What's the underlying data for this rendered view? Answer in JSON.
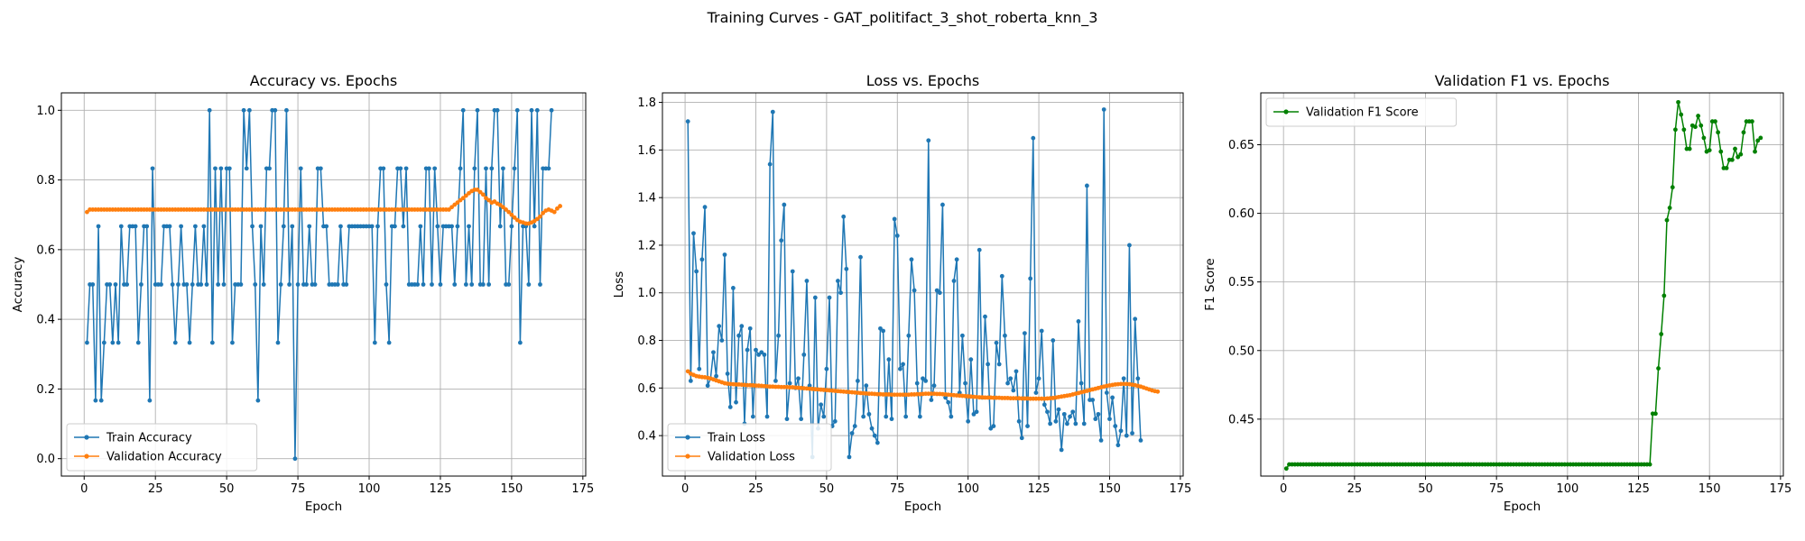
{
  "figure": {
    "suptitle": "Training Curves - GAT_politifact_3_shot_roberta_knn_3",
    "colors": {
      "train": "#1f77b4",
      "validation": "#ff7f0e",
      "f1": "#008000"
    }
  },
  "chart_data": [
    {
      "type": "line",
      "title": "Accuracy vs. Epochs",
      "xlabel": "Epoch",
      "ylabel": "Accuracy",
      "xlim": [
        -8,
        176
      ],
      "ylim": [
        -0.05,
        1.05
      ],
      "xticks": [
        0,
        25,
        50,
        75,
        100,
        125,
        150,
        175
      ],
      "yticks": [
        0.0,
        0.2,
        0.4,
        0.6,
        0.8,
        1.0
      ],
      "ytick_labels": [
        "0.0",
        "0.2",
        "0.4",
        "0.6",
        "0.8",
        "1.0"
      ],
      "grid": true,
      "legend": "lower left",
      "series": [
        {
          "name": "Train Accuracy",
          "color": "#1f77b4",
          "marker": "circle",
          "y": [
            0.333,
            0.5,
            0.5,
            0.167,
            0.667,
            0.167,
            0.333,
            0.5,
            0.5,
            0.333,
            0.5,
            0.333,
            0.667,
            0.5,
            0.5,
            0.667,
            0.667,
            0.667,
            0.333,
            0.5,
            0.667,
            0.667,
            0.167,
            0.833,
            0.5,
            0.5,
            0.5,
            0.667,
            0.667,
            0.667,
            0.5,
            0.333,
            0.5,
            0.667,
            0.5,
            0.5,
            0.333,
            0.5,
            0.667,
            0.5,
            0.5,
            0.667,
            0.5,
            1.0,
            0.333,
            0.833,
            0.5,
            0.833,
            0.5,
            0.833,
            0.833,
            0.333,
            0.5,
            0.5,
            0.5,
            1.0,
            0.833,
            1.0,
            0.667,
            0.5,
            0.167,
            0.667,
            0.5,
            0.833,
            0.833,
            1.0,
            1.0,
            0.333,
            0.5,
            0.667,
            1.0,
            0.5,
            0.667,
            0.0,
            0.5,
            0.833,
            0.5,
            0.5,
            0.667,
            0.5,
            0.5,
            0.833,
            0.833,
            0.667,
            0.667,
            0.5,
            0.5,
            0.5,
            0.5,
            0.667,
            0.5,
            0.5,
            0.667,
            0.667,
            0.667,
            0.667,
            0.667,
            0.667,
            0.667,
            0.667,
            0.667,
            0.333,
            0.667,
            0.833,
            0.833,
            0.5,
            0.333,
            0.667,
            0.667,
            0.833,
            0.833,
            0.667,
            0.833,
            0.5,
            0.5,
            0.5,
            0.5,
            0.667,
            0.5,
            0.833,
            0.833,
            0.5,
            0.833,
            0.667,
            0.5,
            0.667,
            0.667,
            0.667,
            0.667,
            0.5,
            0.667,
            0.833,
            1.0,
            0.5,
            0.667,
            0.5,
            0.833,
            1.0,
            0.5,
            0.5,
            0.833,
            0.5,
            0.833,
            1.0,
            1.0,
            0.667,
            0.833,
            0.5,
            0.5,
            0.667,
            0.833,
            1.0,
            0.333,
            0.667,
            0.667,
            0.5,
            1.0,
            0.667,
            1.0,
            0.5,
            0.833,
            0.833,
            0.833,
            1.0
          ]
        },
        {
          "name": "Validation Accuracy",
          "color": "#ff7f0e",
          "marker": "circle",
          "y": [
            0.708,
            0.715,
            0.715,
            0.715,
            0.715,
            0.715,
            0.715,
            0.715,
            0.715,
            0.715,
            0.715,
            0.715,
            0.715,
            0.715,
            0.715,
            0.715,
            0.715,
            0.715,
            0.715,
            0.715,
            0.715,
            0.715,
            0.715,
            0.715,
            0.715,
            0.715,
            0.715,
            0.715,
            0.715,
            0.715,
            0.715,
            0.715,
            0.715,
            0.715,
            0.715,
            0.715,
            0.715,
            0.715,
            0.715,
            0.715,
            0.715,
            0.715,
            0.715,
            0.715,
            0.715,
            0.715,
            0.715,
            0.715,
            0.715,
            0.715,
            0.715,
            0.715,
            0.715,
            0.715,
            0.715,
            0.715,
            0.715,
            0.715,
            0.715,
            0.715,
            0.715,
            0.715,
            0.715,
            0.715,
            0.715,
            0.715,
            0.715,
            0.715,
            0.715,
            0.715,
            0.715,
            0.715,
            0.715,
            0.715,
            0.715,
            0.715,
            0.715,
            0.715,
            0.715,
            0.715,
            0.715,
            0.715,
            0.715,
            0.715,
            0.715,
            0.715,
            0.715,
            0.715,
            0.715,
            0.715,
            0.715,
            0.715,
            0.715,
            0.715,
            0.715,
            0.715,
            0.715,
            0.715,
            0.715,
            0.715,
            0.715,
            0.715,
            0.715,
            0.715,
            0.715,
            0.715,
            0.715,
            0.715,
            0.715,
            0.715,
            0.715,
            0.715,
            0.715,
            0.715,
            0.715,
            0.715,
            0.715,
            0.715,
            0.715,
            0.715,
            0.715,
            0.715,
            0.715,
            0.715,
            0.715,
            0.715,
            0.715,
            0.715,
            0.722,
            0.729,
            0.735,
            0.742,
            0.748,
            0.755,
            0.762,
            0.768,
            0.772,
            0.772,
            0.765,
            0.758,
            0.748,
            0.742,
            0.735,
            0.738,
            0.732,
            0.728,
            0.722,
            0.715,
            0.708,
            0.7,
            0.692,
            0.685,
            0.68,
            0.678,
            0.675,
            0.675,
            0.678,
            0.682,
            0.688,
            0.695,
            0.705,
            0.712,
            0.715,
            0.712,
            0.708,
            0.718,
            0.725
          ]
        }
      ]
    },
    {
      "type": "line",
      "title": "Loss vs. Epochs",
      "xlabel": "Epoch",
      "ylabel": "Loss",
      "xlim": [
        -8,
        176
      ],
      "ylim": [
        0.23,
        1.84
      ],
      "xticks": [
        0,
        25,
        50,
        75,
        100,
        125,
        150,
        175
      ],
      "yticks": [
        0.4,
        0.6,
        0.8,
        1.0,
        1.2,
        1.4,
        1.6,
        1.8
      ],
      "ytick_labels": [
        "0.4",
        "0.6",
        "0.8",
        "1.0",
        "1.2",
        "1.4",
        "1.6",
        "1.8"
      ],
      "grid": true,
      "legend": "lower left",
      "series": [
        {
          "name": "Train Loss",
          "color": "#1f77b4",
          "marker": "circle",
          "y": [
            1.72,
            0.63,
            1.25,
            1.09,
            0.68,
            1.14,
            1.36,
            0.61,
            0.64,
            0.75,
            0.65,
            0.86,
            0.8,
            1.16,
            0.66,
            0.52,
            1.02,
            0.54,
            0.82,
            0.86,
            0.45,
            0.76,
            0.85,
            0.48,
            0.76,
            0.74,
            0.75,
            0.74,
            0.48,
            1.54,
            1.76,
            0.63,
            0.82,
            1.22,
            1.37,
            0.47,
            0.62,
            1.09,
            0.6,
            0.64,
            0.47,
            0.74,
            1.05,
            0.61,
            0.31,
            0.98,
            0.43,
            0.53,
            0.48,
            0.68,
            0.98,
            0.44,
            0.46,
            1.05,
            1.0,
            1.32,
            1.1,
            0.31,
            0.41,
            0.44,
            0.63,
            1.15,
            0.48,
            0.61,
            0.49,
            0.43,
            0.4,
            0.37,
            0.85,
            0.84,
            0.48,
            0.72,
            0.47,
            1.31,
            1.24,
            0.68,
            0.7,
            0.48,
            0.82,
            1.14,
            1.01,
            0.62,
            0.48,
            0.64,
            0.63,
            1.64,
            0.55,
            0.61,
            1.01,
            1.0,
            1.37,
            0.56,
            0.54,
            0.48,
            1.05,
            1.14,
            0.58,
            0.82,
            0.62,
            0.46,
            0.72,
            0.49,
            0.5,
            1.18,
            0.56,
            0.9,
            0.7,
            0.43,
            0.44,
            0.79,
            0.7,
            1.07,
            0.82,
            0.62,
            0.64,
            0.59,
            0.67,
            0.46,
            0.39,
            0.83,
            0.44,
            1.06,
            1.65,
            0.58,
            0.64,
            0.84,
            0.53,
            0.5,
            0.45,
            0.8,
            0.46,
            0.51,
            0.34,
            0.49,
            0.45,
            0.48,
            0.5,
            0.45,
            0.88,
            0.62,
            0.45,
            1.45,
            0.55,
            0.55,
            0.47,
            0.49,
            0.38,
            1.77,
            0.58,
            0.47,
            0.56,
            0.44,
            0.36,
            0.42,
            0.64,
            0.4,
            1.2,
            0.41,
            0.89,
            0.64,
            0.38
          ]
        },
        {
          "name": "Validation Loss",
          "color": "#ff7f0e",
          "marker": "circle",
          "y": [
            0.67,
            0.66,
            0.655,
            0.65,
            0.648,
            0.646,
            0.645,
            0.643,
            0.64,
            0.636,
            0.632,
            0.628,
            0.624,
            0.62,
            0.618,
            0.617,
            0.616,
            0.615,
            0.615,
            0.614,
            0.613,
            0.612,
            0.612,
            0.611,
            0.61,
            0.61,
            0.609,
            0.608,
            0.607,
            0.606,
            0.606,
            0.605,
            0.605,
            0.604,
            0.604,
            0.604,
            0.603,
            0.603,
            0.602,
            0.601,
            0.6,
            0.599,
            0.598,
            0.597,
            0.596,
            0.595,
            0.594,
            0.593,
            0.592,
            0.591,
            0.59,
            0.589,
            0.588,
            0.587,
            0.586,
            0.585,
            0.584,
            0.583,
            0.582,
            0.581,
            0.58,
            0.579,
            0.578,
            0.577,
            0.576,
            0.576,
            0.575,
            0.574,
            0.574,
            0.573,
            0.573,
            0.573,
            0.572,
            0.572,
            0.572,
            0.572,
            0.572,
            0.572,
            0.572,
            0.573,
            0.573,
            0.574,
            0.574,
            0.575,
            0.576,
            0.576,
            0.576,
            0.576,
            0.575,
            0.575,
            0.574,
            0.573,
            0.572,
            0.571,
            0.57,
            0.569,
            0.568,
            0.567,
            0.566,
            0.565,
            0.564,
            0.563,
            0.562,
            0.561,
            0.561,
            0.56,
            0.56,
            0.56,
            0.559,
            0.559,
            0.559,
            0.558,
            0.558,
            0.558,
            0.557,
            0.557,
            0.557,
            0.557,
            0.556,
            0.556,
            0.556,
            0.555,
            0.555,
            0.555,
            0.555,
            0.555,
            0.555,
            0.556,
            0.557,
            0.558,
            0.56,
            0.562,
            0.564,
            0.566,
            0.568,
            0.57,
            0.573,
            0.576,
            0.579,
            0.582,
            0.585,
            0.588,
            0.591,
            0.594,
            0.597,
            0.6,
            0.603,
            0.606,
            0.609,
            0.611,
            0.613,
            0.615,
            0.616,
            0.617,
            0.617,
            0.617,
            0.616,
            0.614,
            0.612,
            0.609,
            0.606,
            0.602,
            0.598,
            0.594,
            0.59,
            0.587,
            0.585
          ]
        }
      ]
    },
    {
      "type": "line",
      "title": "Validation F1 vs. Epochs",
      "xlabel": "Epoch",
      "ylabel": "F1 Score",
      "xlim": [
        -8,
        176
      ],
      "ylim": [
        0.4085,
        0.6878
      ],
      "xticks": [
        0,
        25,
        50,
        75,
        100,
        125,
        150,
        175
      ],
      "yticks": [
        0.45,
        0.5,
        0.55,
        0.6,
        0.65
      ],
      "ytick_labels": [
        "0.45",
        "0.50",
        "0.55",
        "0.60",
        "0.65"
      ],
      "grid": true,
      "legend": "upper left",
      "series": [
        {
          "name": "Validation F1 Score",
          "color": "#008000",
          "marker": "circle",
          "y": [
            0.414,
            0.417,
            0.417,
            0.417,
            0.417,
            0.417,
            0.417,
            0.417,
            0.417,
            0.417,
            0.417,
            0.417,
            0.417,
            0.417,
            0.417,
            0.417,
            0.417,
            0.417,
            0.417,
            0.417,
            0.417,
            0.417,
            0.417,
            0.417,
            0.417,
            0.417,
            0.417,
            0.417,
            0.417,
            0.417,
            0.417,
            0.417,
            0.417,
            0.417,
            0.417,
            0.417,
            0.417,
            0.417,
            0.417,
            0.417,
            0.417,
            0.417,
            0.417,
            0.417,
            0.417,
            0.417,
            0.417,
            0.417,
            0.417,
            0.417,
            0.417,
            0.417,
            0.417,
            0.417,
            0.417,
            0.417,
            0.417,
            0.417,
            0.417,
            0.417,
            0.417,
            0.417,
            0.417,
            0.417,
            0.417,
            0.417,
            0.417,
            0.417,
            0.417,
            0.417,
            0.417,
            0.417,
            0.417,
            0.417,
            0.417,
            0.417,
            0.417,
            0.417,
            0.417,
            0.417,
            0.417,
            0.417,
            0.417,
            0.417,
            0.417,
            0.417,
            0.417,
            0.417,
            0.417,
            0.417,
            0.417,
            0.417,
            0.417,
            0.417,
            0.417,
            0.417,
            0.417,
            0.417,
            0.417,
            0.417,
            0.417,
            0.417,
            0.417,
            0.417,
            0.417,
            0.417,
            0.417,
            0.417,
            0.417,
            0.417,
            0.417,
            0.417,
            0.417,
            0.417,
            0.417,
            0.417,
            0.417,
            0.417,
            0.417,
            0.417,
            0.417,
            0.417,
            0.417,
            0.417,
            0.417,
            0.417,
            0.417,
            0.417,
            0.417,
            0.454,
            0.454,
            0.487,
            0.512,
            0.54,
            0.595,
            0.604,
            0.619,
            0.661,
            0.681,
            0.672,
            0.661,
            0.647,
            0.647,
            0.664,
            0.663,
            0.671,
            0.664,
            0.655,
            0.645,
            0.646,
            0.667,
            0.667,
            0.659,
            0.645,
            0.633,
            0.633,
            0.639,
            0.639,
            0.647,
            0.641,
            0.643,
            0.659,
            0.667,
            0.667,
            0.667,
            0.645,
            0.653,
            0.655
          ]
        }
      ]
    }
  ]
}
